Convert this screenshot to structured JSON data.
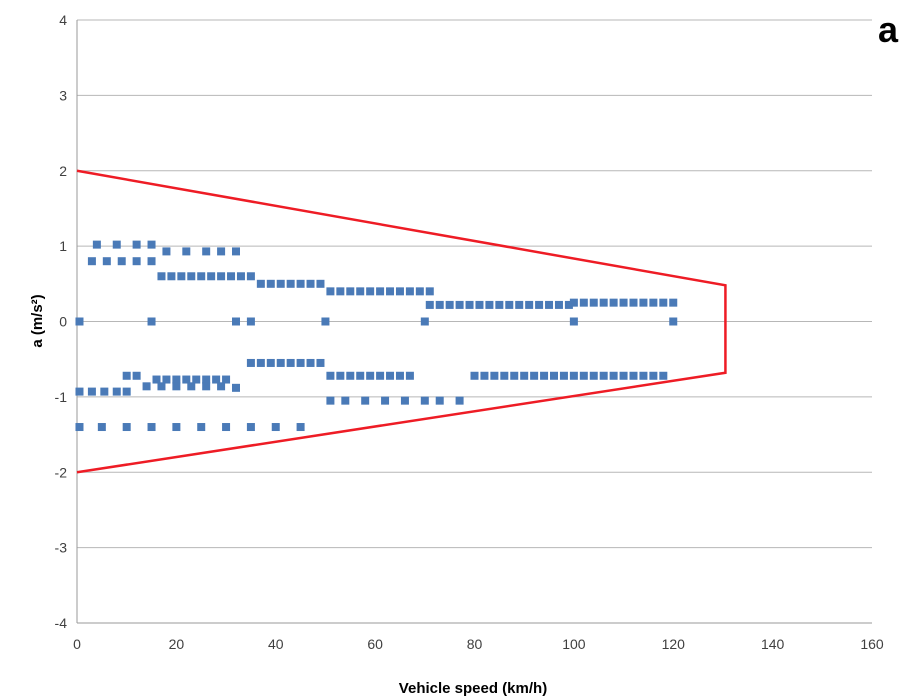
{
  "panel_label": "a",
  "colors": {
    "points": "#4a7ab7",
    "boundary": "#ee1c25",
    "grid": "#b7b7b7"
  },
  "chart_data": {
    "type": "scatter",
    "xlabel": "Vehicle speed (km/h)",
    "ylabel": "a (m/s²)",
    "xlim": [
      0,
      160
    ],
    "ylim": [
      -4,
      4
    ],
    "xticks": [
      0,
      20,
      40,
      60,
      80,
      100,
      120,
      140,
      160
    ],
    "yticks": [
      4,
      3,
      2,
      1,
      0,
      -1,
      -2,
      -3,
      -4
    ],
    "grid": "horizontal",
    "series": [
      {
        "marker": "square",
        "points": [
          [
            0.5,
            0
          ],
          [
            15,
            0
          ],
          [
            32,
            0
          ],
          [
            35,
            0
          ],
          [
            50,
            0
          ],
          [
            70,
            0
          ],
          [
            100,
            0
          ],
          [
            120,
            0
          ],
          [
            4,
            1.02
          ],
          [
            8,
            1.02
          ],
          [
            12,
            1.02
          ],
          [
            15,
            1.02
          ],
          [
            18,
            0.93
          ],
          [
            22,
            0.93
          ],
          [
            26,
            0.93
          ],
          [
            29,
            0.93
          ],
          [
            32,
            0.93
          ],
          [
            3,
            0.8
          ],
          [
            6,
            0.8
          ],
          [
            9,
            0.8
          ],
          [
            12,
            0.8
          ],
          [
            15,
            0.8
          ],
          [
            17,
            0.6
          ],
          [
            19,
            0.6
          ],
          [
            21,
            0.6
          ],
          [
            23,
            0.6
          ],
          [
            25,
            0.6
          ],
          [
            27,
            0.6
          ],
          [
            29,
            0.6
          ],
          [
            31,
            0.6
          ],
          [
            33,
            0.6
          ],
          [
            35,
            0.6
          ],
          [
            37,
            0.5
          ],
          [
            39,
            0.5
          ],
          [
            41,
            0.5
          ],
          [
            43,
            0.5
          ],
          [
            45,
            0.5
          ],
          [
            47,
            0.5
          ],
          [
            49,
            0.5
          ],
          [
            51,
            0.4
          ],
          [
            53,
            0.4
          ],
          [
            55,
            0.4
          ],
          [
            57,
            0.4
          ],
          [
            59,
            0.4
          ],
          [
            61,
            0.4
          ],
          [
            63,
            0.4
          ],
          [
            65,
            0.4
          ],
          [
            67,
            0.4
          ],
          [
            69,
            0.4
          ],
          [
            71,
            0.4
          ],
          [
            71,
            0.22
          ],
          [
            73,
            0.22
          ],
          [
            75,
            0.22
          ],
          [
            77,
            0.22
          ],
          [
            79,
            0.22
          ],
          [
            81,
            0.22
          ],
          [
            83,
            0.22
          ],
          [
            85,
            0.22
          ],
          [
            87,
            0.22
          ],
          [
            89,
            0.22
          ],
          [
            91,
            0.22
          ],
          [
            93,
            0.22
          ],
          [
            95,
            0.22
          ],
          [
            97,
            0.22
          ],
          [
            99,
            0.22
          ],
          [
            100,
            0.25
          ],
          [
            102,
            0.25
          ],
          [
            104,
            0.25
          ],
          [
            106,
            0.25
          ],
          [
            108,
            0.25
          ],
          [
            110,
            0.25
          ],
          [
            112,
            0.25
          ],
          [
            114,
            0.25
          ],
          [
            116,
            0.25
          ],
          [
            118,
            0.25
          ],
          [
            120,
            0.25
          ],
          [
            35,
            -0.55
          ],
          [
            37,
            -0.55
          ],
          [
            39,
            -0.55
          ],
          [
            41,
            -0.55
          ],
          [
            43,
            -0.55
          ],
          [
            45,
            -0.55
          ],
          [
            47,
            -0.55
          ],
          [
            49,
            -0.55
          ],
          [
            10,
            -0.72
          ],
          [
            12,
            -0.72
          ],
          [
            16,
            -0.77
          ],
          [
            18,
            -0.77
          ],
          [
            20,
            -0.77
          ],
          [
            22,
            -0.77
          ],
          [
            24,
            -0.77
          ],
          [
            26,
            -0.77
          ],
          [
            28,
            -0.77
          ],
          [
            30,
            -0.77
          ],
          [
            14,
            -0.86
          ],
          [
            17,
            -0.86
          ],
          [
            20,
            -0.86
          ],
          [
            23,
            -0.86
          ],
          [
            26,
            -0.86
          ],
          [
            29,
            -0.86
          ],
          [
            32,
            -0.88
          ],
          [
            0.5,
            -0.93
          ],
          [
            3,
            -0.93
          ],
          [
            5.5,
            -0.93
          ],
          [
            8,
            -0.93
          ],
          [
            10,
            -0.93
          ],
          [
            51,
            -0.72
          ],
          [
            53,
            -0.72
          ],
          [
            55,
            -0.72
          ],
          [
            57,
            -0.72
          ],
          [
            59,
            -0.72
          ],
          [
            61,
            -0.72
          ],
          [
            63,
            -0.72
          ],
          [
            65,
            -0.72
          ],
          [
            67,
            -0.72
          ],
          [
            80,
            -0.72
          ],
          [
            82,
            -0.72
          ],
          [
            84,
            -0.72
          ],
          [
            86,
            -0.72
          ],
          [
            88,
            -0.72
          ],
          [
            90,
            -0.72
          ],
          [
            92,
            -0.72
          ],
          [
            94,
            -0.72
          ],
          [
            96,
            -0.72
          ],
          [
            98,
            -0.72
          ],
          [
            100,
            -0.72
          ],
          [
            102,
            -0.72
          ],
          [
            104,
            -0.72
          ],
          [
            106,
            -0.72
          ],
          [
            108,
            -0.72
          ],
          [
            110,
            -0.72
          ],
          [
            112,
            -0.72
          ],
          [
            114,
            -0.72
          ],
          [
            116,
            -0.72
          ],
          [
            118,
            -0.72
          ],
          [
            51,
            -1.05
          ],
          [
            54,
            -1.05
          ],
          [
            58,
            -1.05
          ],
          [
            62,
            -1.05
          ],
          [
            66,
            -1.05
          ],
          [
            70,
            -1.05
          ],
          [
            73,
            -1.05
          ],
          [
            77,
            -1.05
          ],
          [
            0.5,
            -1.4
          ],
          [
            5,
            -1.4
          ],
          [
            10,
            -1.4
          ],
          [
            15,
            -1.4
          ],
          [
            20,
            -1.4
          ],
          [
            25,
            -1.4
          ],
          [
            30,
            -1.4
          ],
          [
            35,
            -1.4
          ],
          [
            40,
            -1.4
          ],
          [
            45,
            -1.4
          ]
        ]
      }
    ],
    "boundary": [
      [
        0,
        2
      ],
      [
        130.5,
        0.48
      ],
      [
        130.5,
        -0.68
      ],
      [
        0,
        -2
      ]
    ]
  }
}
